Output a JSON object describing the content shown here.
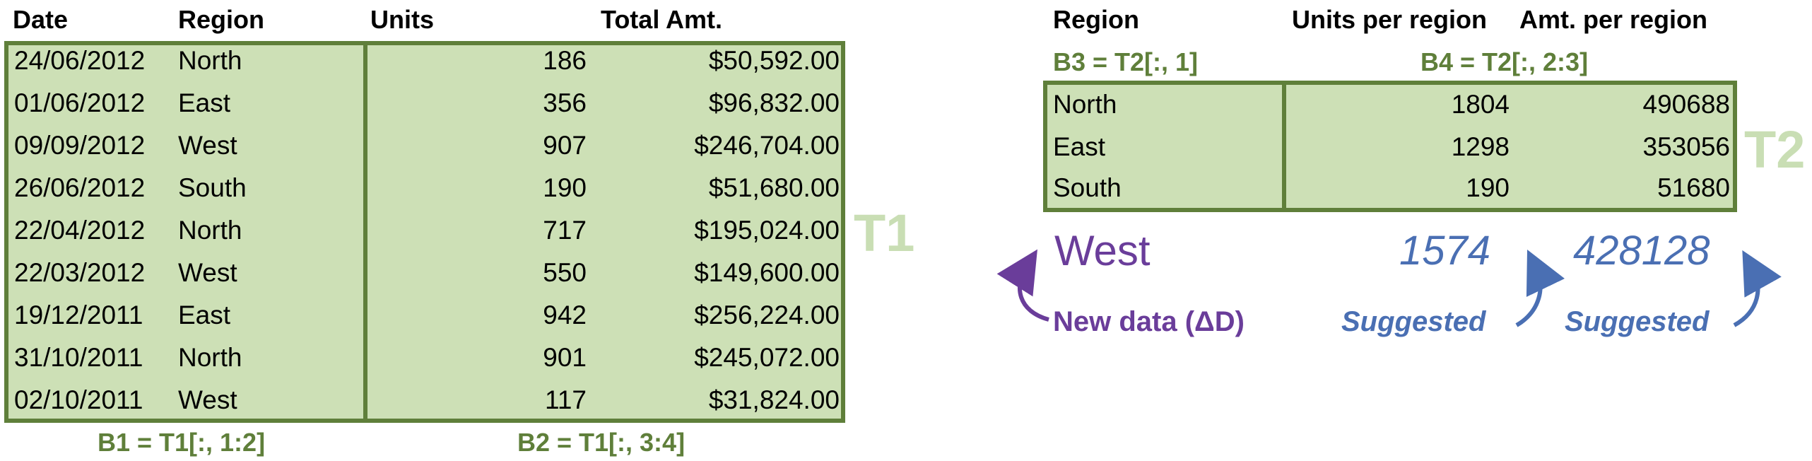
{
  "t1": {
    "headers": [
      "Date",
      "Region",
      "Units",
      "Total Amt."
    ],
    "rows": [
      [
        "24/06/2012",
        "North",
        "186",
        "$50,592.00"
      ],
      [
        "01/06/2012",
        "East",
        "356",
        "$96,832.00"
      ],
      [
        "09/09/2012",
        "West",
        "907",
        "$246,704.00"
      ],
      [
        "26/06/2012",
        "South",
        "190",
        "$51,680.00"
      ],
      [
        "22/04/2012",
        "North",
        "717",
        "$195,024.00"
      ],
      [
        "22/03/2012",
        "West",
        "550",
        "$149,600.00"
      ],
      [
        "19/12/2011",
        "East",
        "942",
        "$256,224.00"
      ],
      [
        "31/10/2011",
        "North",
        "901",
        "$245,072.00"
      ],
      [
        "02/10/2011",
        "West",
        "117",
        "$31,824.00"
      ]
    ],
    "tag": "T1",
    "b1": "B1 = T1[:, 1:2]",
    "b2": "B2 = T1[:, 3:4]"
  },
  "t2": {
    "headers": [
      "Region",
      "Units per region",
      "Amt. per region"
    ],
    "rows": [
      [
        "North",
        "1804",
        "490688"
      ],
      [
        "East",
        "1298",
        "353056"
      ],
      [
        "South",
        "190",
        "51680"
      ]
    ],
    "tag": "T2",
    "b3": "B3 = T2[:, 1]",
    "b4": "B4 = T2[:, 2:3]"
  },
  "new_row": {
    "region": "West",
    "units": "1574",
    "amt": "428128",
    "new_data_label": "New data (ΔD)",
    "suggested_label_1": "Suggested",
    "suggested_label_2": "Suggested"
  },
  "colors": {
    "box_fill": "#cde0b6",
    "box_border": "#5f7f3a",
    "tag_color": "#c9deb4",
    "purple": "#6a3d9a",
    "blue": "#4a6fb3"
  }
}
